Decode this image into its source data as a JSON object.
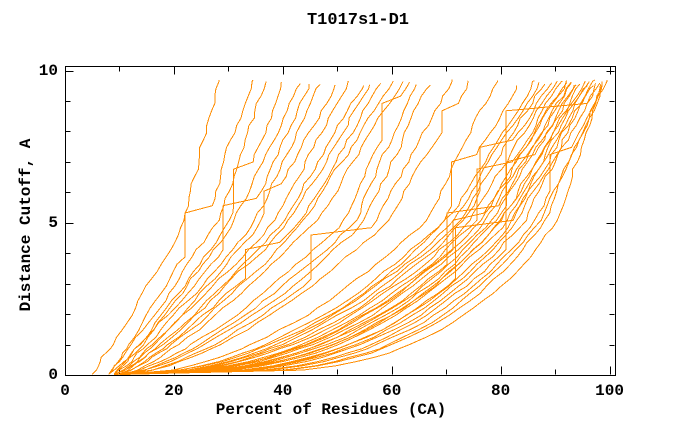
{
  "chart_data": {
    "type": "line",
    "title": "T1017s1-D1",
    "xlabel": "Percent of Residues (CA)",
    "ylabel": "Distance Cutoff, A",
    "xlim": [
      0,
      100
    ],
    "ylim": [
      0,
      10
    ],
    "x_tick_labels": [
      0,
      20,
      40,
      60,
      80,
      100
    ],
    "x_minor_tick_step": 10,
    "y_tick_labels": [
      0,
      5,
      10
    ],
    "y_minor_tick_step": 1,
    "grid": false,
    "legend": "none",
    "line_color": "#ff8c00",
    "axis_color": "#000000",
    "background_color": "#ffffff",
    "num_curves": 45,
    "curve_top_cutoff": 9.6,
    "curve_anchor_format": "[percent_at_cutoff_0A, percent_at_cutoff_5A, percent_at_cutoff_9.6A]",
    "curves": [
      [
        5,
        22,
        28
      ],
      [
        8,
        26,
        34
      ],
      [
        8,
        28,
        37
      ],
      [
        9,
        30,
        40
      ],
      [
        9,
        31,
        43
      ],
      [
        8,
        33,
        45
      ],
      [
        9,
        35,
        47
      ],
      [
        10,
        36,
        50
      ],
      [
        9,
        38,
        52
      ],
      [
        10,
        40,
        55
      ],
      [
        9,
        41,
        56
      ],
      [
        10,
        43,
        58
      ],
      [
        10,
        44,
        60
      ],
      [
        11,
        46,
        62
      ],
      [
        10,
        51,
        63
      ],
      [
        11,
        53,
        65
      ],
      [
        10,
        55,
        67
      ],
      [
        11,
        57,
        71
      ],
      [
        10,
        59,
        74
      ],
      [
        11,
        66,
        79
      ],
      [
        10,
        69,
        83
      ],
      [
        9,
        70,
        86
      ],
      [
        10,
        71,
        87
      ],
      [
        11,
        72,
        88
      ],
      [
        10,
        73,
        89
      ],
      [
        11,
        74,
        90
      ],
      [
        9,
        75,
        91
      ],
      [
        10,
        76,
        92
      ],
      [
        11,
        76,
        92
      ],
      [
        10,
        77,
        93
      ],
      [
        11,
        78,
        93
      ],
      [
        9,
        78,
        94
      ],
      [
        10,
        79,
        94
      ],
      [
        11,
        80,
        95
      ],
      [
        10,
        80,
        95
      ],
      [
        11,
        81,
        96
      ],
      [
        10,
        82,
        96
      ],
      [
        9,
        82,
        97
      ],
      [
        10,
        83,
        97
      ],
      [
        11,
        84,
        98
      ],
      [
        10,
        85,
        98
      ],
      [
        11,
        86,
        99
      ],
      [
        10,
        87,
        99
      ],
      [
        11,
        88,
        99
      ],
      [
        10,
        90,
        99
      ]
    ]
  }
}
